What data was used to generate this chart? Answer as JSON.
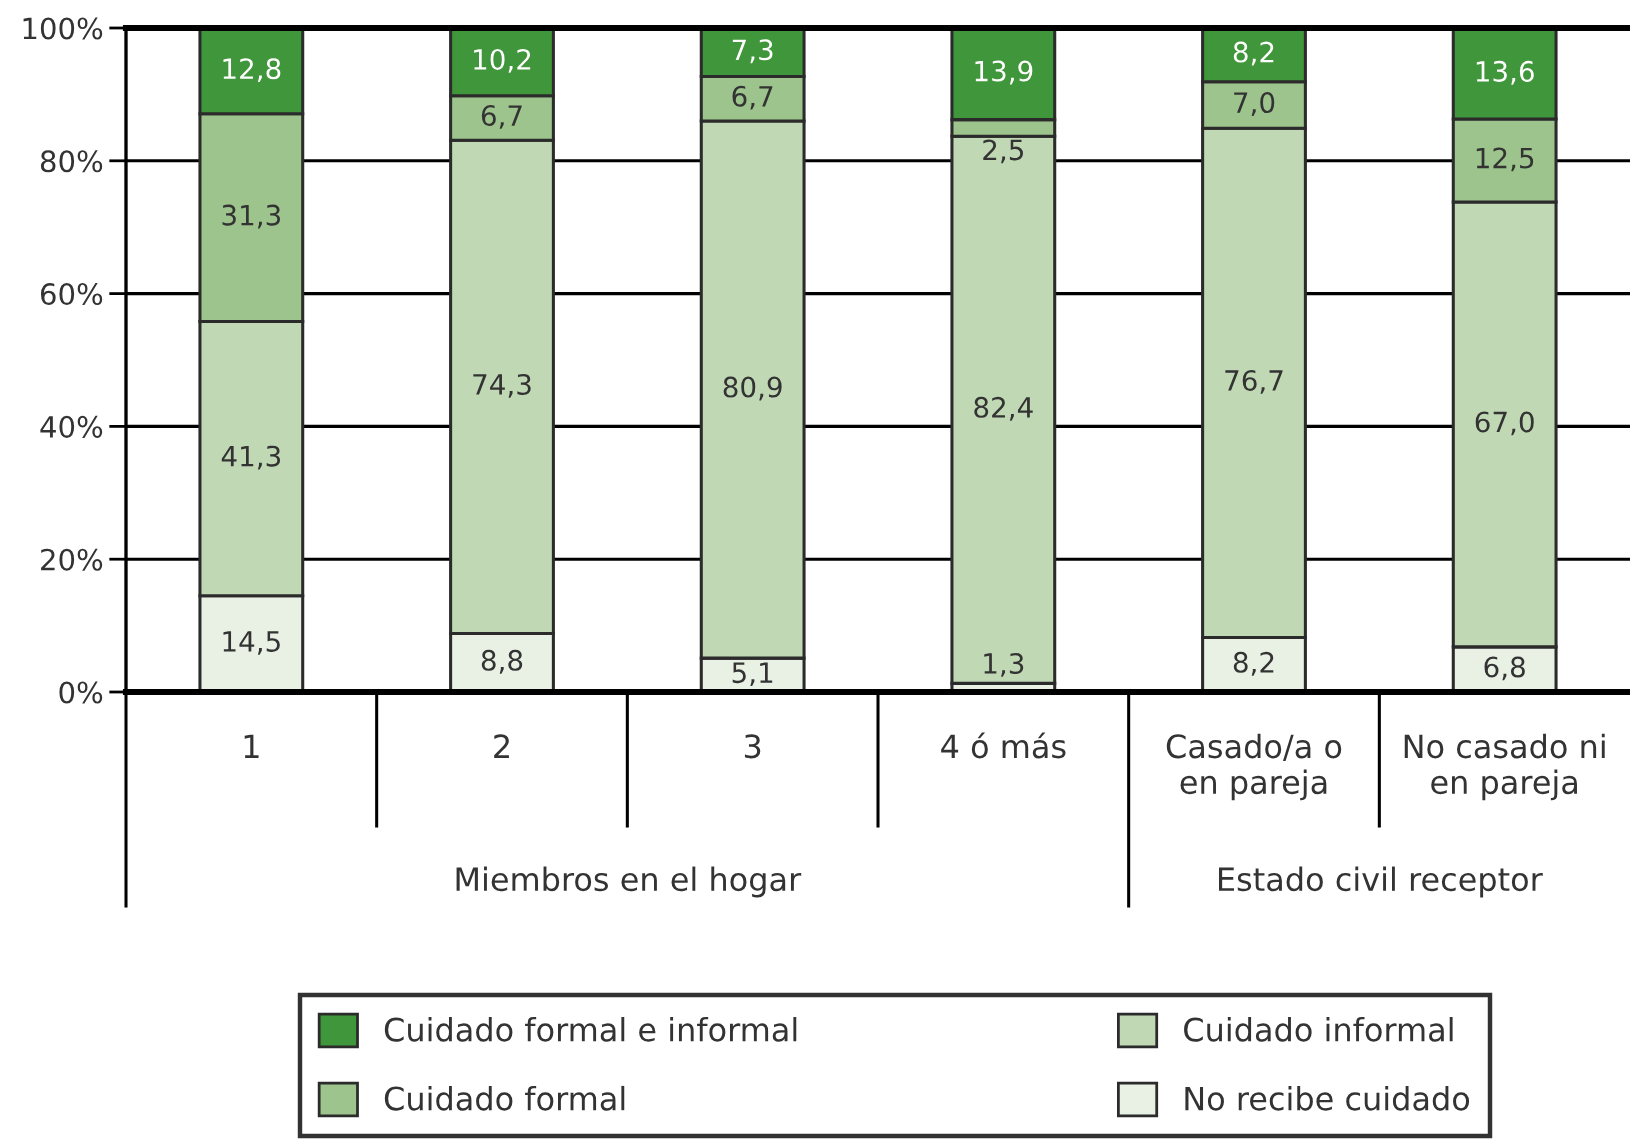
{
  "chart_data": {
    "type": "bar",
    "stacked": true,
    "categories": [
      "1",
      "2",
      "3",
      "4 ó más",
      "Casado/a o\nen pareja",
      "No casado ni\nen pareja"
    ],
    "series": [
      {
        "name": "No recibe cuidado",
        "color": "#e8f1e4",
        "values": [
          14.5,
          8.8,
          5.1,
          1.3,
          8.2,
          6.8
        ],
        "value_labels": [
          "14,5",
          "8,8",
          "5,1",
          "1,3",
          "8,2",
          "6,8"
        ]
      },
      {
        "name": "Cuidado informal",
        "color": "#c0d9b4",
        "values": [
          41.3,
          74.3,
          80.9,
          82.4,
          76.7,
          67.0
        ],
        "value_labels": [
          "41,3",
          "74,3",
          "80,9",
          "82,4",
          "76,7",
          "67,0"
        ]
      },
      {
        "name": "Cuidado formal",
        "color": "#9cc48c",
        "values": [
          31.3,
          6.7,
          6.7,
          2.5,
          7.0,
          12.5
        ],
        "value_labels": [
          "31,3",
          "6,7",
          "6,7",
          "2,5",
          "7,0",
          "12,5"
        ]
      },
      {
        "name": "Cuidado formal e informal",
        "color": "#40963a",
        "values": [
          12.8,
          10.2,
          7.3,
          13.9,
          8.2,
          13.6
        ],
        "value_labels": [
          "12,8",
          "10,2",
          "7,3",
          "13,9",
          "8,2",
          "13,6"
        ]
      }
    ],
    "ylim": [
      0,
      100
    ],
    "yticks": [
      {
        "value": 0,
        "label": "0%"
      },
      {
        "value": 20,
        "label": "20%"
      },
      {
        "value": 40,
        "label": "40%"
      },
      {
        "value": 60,
        "label": "60%"
      },
      {
        "value": 80,
        "label": "80%"
      },
      {
        "value": 100,
        "label": "100%"
      }
    ],
    "grid": "y",
    "legend": "bottom",
    "annotations": [
      "Miembros en el hogar",
      "Estado civil receptor"
    ]
  }
}
